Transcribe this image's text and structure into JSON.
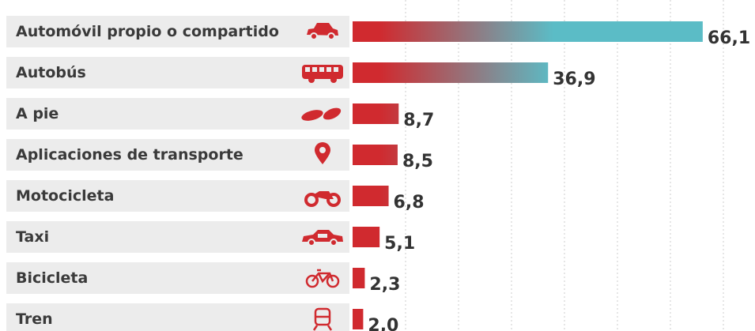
{
  "chart_data": {
    "type": "bar",
    "orientation": "horizontal",
    "categories": [
      "Automóvil propio o compartido",
      "Autobús",
      "A pie",
      "Aplicaciones de transporte",
      "Motocicleta",
      "Taxi",
      "Bicicleta",
      "Tren"
    ],
    "values": [
      66.1,
      36.9,
      8.7,
      8.5,
      6.8,
      5.1,
      2.3,
      2.0
    ],
    "value_labels": [
      "66,1",
      "36,9",
      "8,7",
      "8,5",
      "6,8",
      "5,1",
      "2,3",
      "2,0"
    ],
    "colors": [
      "#d02a2f",
      "#5bbcc6"
    ],
    "xlim": [
      0,
      70
    ],
    "xticks": [
      10,
      20,
      30,
      40,
      50,
      60,
      70
    ],
    "grid": true
  }
}
